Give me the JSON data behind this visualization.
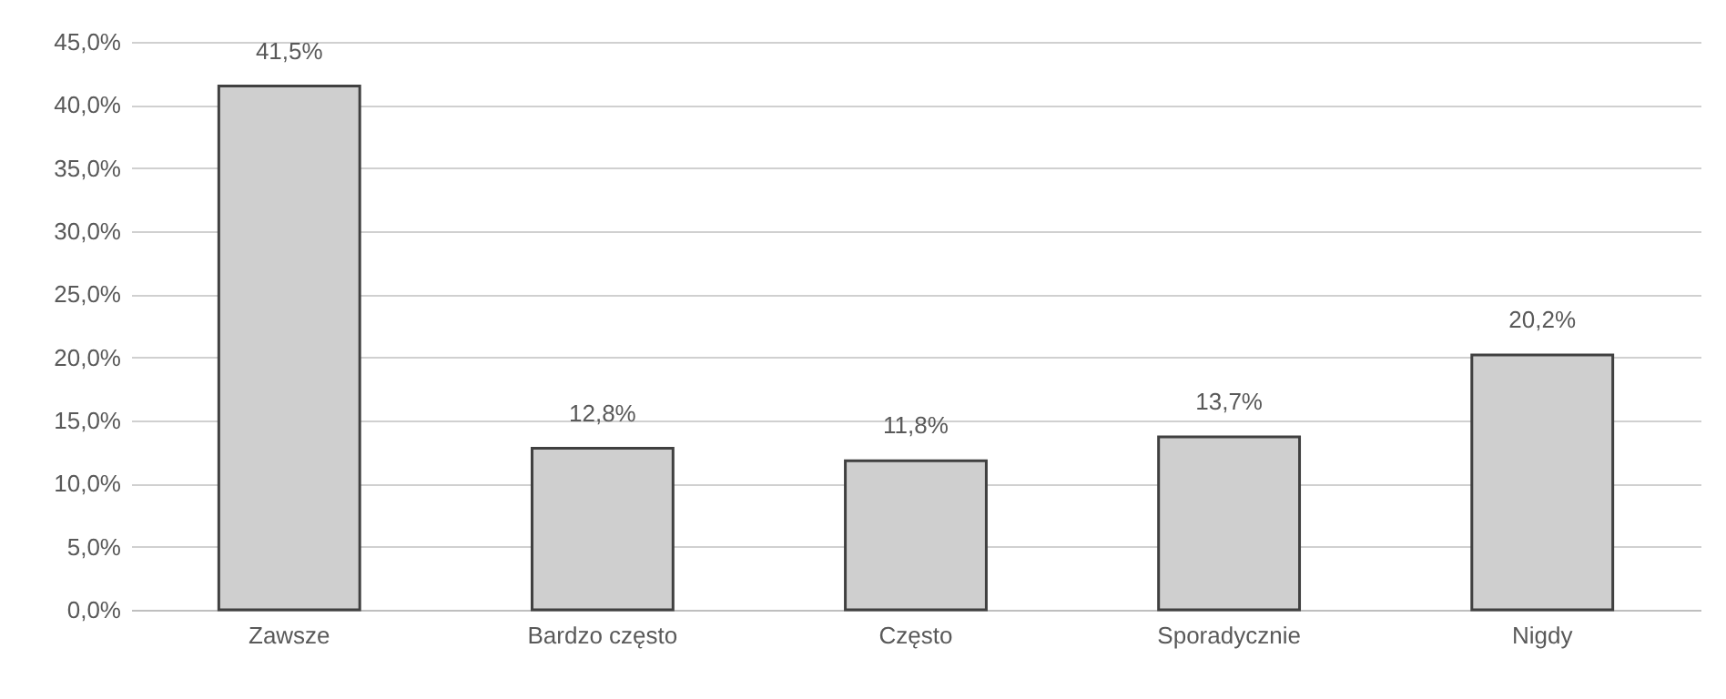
{
  "chart_data": {
    "type": "bar",
    "categories": [
      "Zawsze",
      "Bardzo często",
      "Często",
      "Sporadycznie",
      "Nigdy"
    ],
    "values": [
      41.5,
      12.8,
      11.8,
      13.7,
      20.2
    ],
    "value_labels": [
      "41,5%",
      "12,8%",
      "11,8%",
      "13,7%",
      "20,2%"
    ],
    "color": "#cfcfcf",
    "ylim": [
      0,
      45
    ],
    "yticks": [
      {
        "value": 0,
        "label": "0,0%"
      },
      {
        "value": 5,
        "label": "5,0%"
      },
      {
        "value": 10,
        "label": "10,0%"
      },
      {
        "value": 15,
        "label": "15,0%"
      },
      {
        "value": 20,
        "label": "20,0%"
      },
      {
        "value": 25,
        "label": "25,0%"
      },
      {
        "value": 30,
        "label": "30,0%"
      },
      {
        "value": 35,
        "label": "35,0%"
      },
      {
        "value": 40,
        "label": "40,0%"
      },
      {
        "value": 45,
        "label": "45,0%"
      }
    ],
    "grid": "y"
  }
}
